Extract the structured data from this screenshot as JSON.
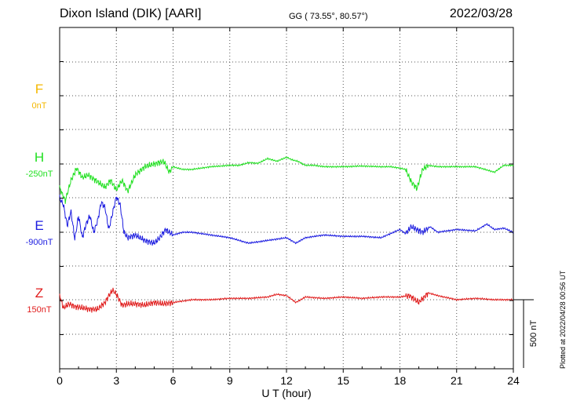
{
  "header": {
    "station": "Dixon Island (DIK)  [AARI]",
    "coords": "GG ( 73.55°,  80.57°)",
    "date": "2022/03/28"
  },
  "footer": {
    "plotted": "Plotted at 2022/04/28 00:56 UT"
  },
  "chart_data": {
    "type": "line",
    "xlabel": "U T (hour)",
    "xlim": [
      0,
      24
    ],
    "xticks": [
      "0",
      "3",
      "6",
      "9",
      "12",
      "15",
      "18",
      "21",
      "24"
    ],
    "scale_bar_label": "500 nT",
    "grid": true,
    "series": [
      {
        "name": "F",
        "baseline_label": "0nT",
        "color": "#f5b800",
        "x": [],
        "y": []
      },
      {
        "name": "H",
        "baseline_label": "-250nT",
        "color": "#22e022",
        "x": [
          0,
          0.3,
          0.6,
          0.9,
          1.2,
          1.5,
          1.8,
          2.1,
          2.4,
          2.7,
          3.0,
          3.3,
          3.6,
          4.0,
          4.5,
          5.0,
          5.5,
          5.8,
          6.0,
          6.5,
          7,
          8,
          9,
          9.5,
          10,
          10.5,
          11,
          11.5,
          12,
          12.3,
          12.6,
          13,
          13.5,
          14,
          15,
          16,
          17,
          17.5,
          18,
          18.3,
          18.6,
          18.9,
          19.2,
          19.5,
          20,
          21,
          22,
          22.5,
          23,
          23.5,
          24
        ],
        "y": [
          -175,
          -270,
          -120,
          -30,
          -100,
          -80,
          -110,
          -140,
          -170,
          -120,
          -190,
          -120,
          -200,
          -80,
          -20,
          0,
          20,
          -60,
          -20,
          -40,
          -40,
          -20,
          -10,
          -10,
          10,
          5,
          40,
          20,
          50,
          30,
          20,
          -10,
          -10,
          -20,
          -20,
          -15,
          -20,
          -20,
          -30,
          -40,
          -130,
          -180,
          -40,
          -10,
          -20,
          -20,
          -20,
          -40,
          -60,
          -10,
          -10
        ]
      },
      {
        "name": "E",
        "baseline_label": "-900nT",
        "color": "#1c1ce0",
        "x": [
          0,
          0.2,
          0.4,
          0.6,
          0.8,
          1.0,
          1.2,
          1.4,
          1.6,
          1.8,
          2.0,
          2.2,
          2.4,
          2.6,
          2.8,
          3.0,
          3.2,
          3.4,
          3.6,
          4.0,
          4.5,
          5.0,
          5.3,
          5.6,
          6.0,
          6.5,
          7,
          8,
          9,
          10,
          11,
          12,
          12.5,
          13,
          14,
          15,
          16,
          17,
          18,
          18.3,
          18.6,
          18.9,
          19.2,
          19.6,
          20,
          21,
          22,
          22.6,
          23,
          23.5,
          24
        ],
        "y": [
          250,
          200,
          50,
          150,
          -50,
          120,
          -40,
          60,
          120,
          0,
          80,
          220,
          180,
          20,
          140,
          260,
          200,
          0,
          -40,
          -20,
          -60,
          -80,
          -40,
          20,
          -20,
          0,
          0,
          -20,
          -40,
          -80,
          -60,
          -40,
          -80,
          -40,
          -20,
          -30,
          -30,
          -40,
          20,
          -10,
          40,
          20,
          0,
          40,
          0,
          20,
          10,
          60,
          20,
          30,
          0
        ]
      },
      {
        "name": "Z",
        "baseline_label": "150nT",
        "color": "#e01c1c",
        "x": [
          0,
          0.2,
          0.5,
          0.8,
          1.2,
          1.6,
          2.0,
          2.4,
          2.6,
          2.8,
          3.0,
          3.3,
          3.6,
          4.0,
          4.5,
          5.0,
          5.5,
          6.0,
          7,
          8,
          9,
          10,
          11,
          11.5,
          12,
          12.5,
          13,
          14,
          15,
          16,
          17,
          18,
          18.5,
          19,
          19.5,
          20,
          21,
          22,
          23,
          24
        ],
        "y": [
          30,
          -60,
          -30,
          -50,
          -60,
          -70,
          -70,
          -20,
          30,
          70,
          40,
          -40,
          -30,
          -30,
          -40,
          -20,
          -30,
          -20,
          0,
          0,
          10,
          10,
          20,
          40,
          30,
          -20,
          20,
          10,
          20,
          10,
          20,
          20,
          30,
          -20,
          50,
          30,
          0,
          10,
          0,
          0
        ]
      }
    ]
  }
}
